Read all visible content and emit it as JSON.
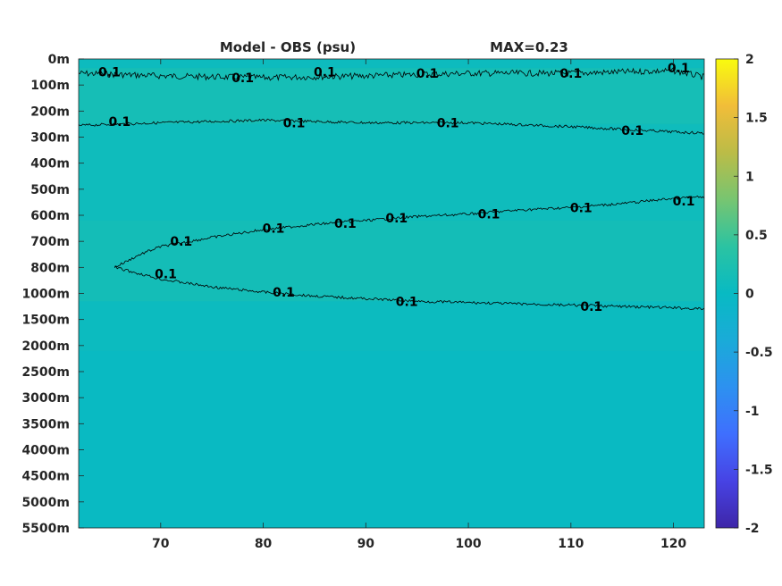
{
  "chart_data": {
    "type": "heatmap",
    "title": "Model - OBS (psu)",
    "subtitle": "MAX=0.23",
    "xlim": [
      62,
      123
    ],
    "x_ticks": [
      {
        "value": 70,
        "label": "70"
      },
      {
        "value": 80,
        "label": "80"
      },
      {
        "value": 90,
        "label": "90"
      },
      {
        "value": 100,
        "label": "100"
      },
      {
        "value": 110,
        "label": "110"
      },
      {
        "value": 120,
        "label": "120"
      }
    ],
    "y_ticks": [
      {
        "label": "0m",
        "index": 0
      },
      {
        "label": "100m",
        "index": 1
      },
      {
        "label": "200m",
        "index": 2
      },
      {
        "label": "300m",
        "index": 3
      },
      {
        "label": "400m",
        "index": 4
      },
      {
        "label": "500m",
        "index": 5
      },
      {
        "label": "600m",
        "index": 6
      },
      {
        "label": "700m",
        "index": 7
      },
      {
        "label": "800m",
        "index": 8
      },
      {
        "label": "1000m",
        "index": 9
      },
      {
        "label": "1500m",
        "index": 10
      },
      {
        "label": "2000m",
        "index": 11
      },
      {
        "label": "2500m",
        "index": 12
      },
      {
        "label": "3000m",
        "index": 13
      },
      {
        "label": "3500m",
        "index": 14
      },
      {
        "label": "4000m",
        "index": 15
      },
      {
        "label": "4500m",
        "index": 16
      },
      {
        "label": "5000m",
        "index": 17
      },
      {
        "label": "5500m",
        "index": 18
      }
    ],
    "colorbar": {
      "colormap": "parula",
      "clim": [
        -2,
        2
      ],
      "ticks": [
        {
          "value": 2,
          "label": "2"
        },
        {
          "value": 1.5,
          "label": "1.5"
        },
        {
          "value": 1,
          "label": "1"
        },
        {
          "value": 0.5,
          "label": "0.5"
        },
        {
          "value": 0,
          "label": "0"
        },
        {
          "value": -0.5,
          "label": "-0.5"
        },
        {
          "value": -1,
          "label": "-1"
        },
        {
          "value": -1.5,
          "label": "-1.5"
        },
        {
          "value": -2,
          "label": "-2"
        }
      ],
      "stops": [
        "#3e26a8",
        "#4743e4",
        "#3f6ffe",
        "#2d91f0",
        "#1aabd8",
        "#08bac3",
        "#2bc3a2",
        "#77c571",
        "#bbbc47",
        "#f1bd39",
        "#f9fb0e"
      ]
    },
    "field_bands": [
      {
        "depth_index_from": 0,
        "depth_index_to": 0.35,
        "value": 0.06
      },
      {
        "depth_index_from": 0.35,
        "depth_index_to": 2.5,
        "value": 0.16
      },
      {
        "depth_index_from": 2.5,
        "depth_index_to": 6.2,
        "value": 0.08
      },
      {
        "depth_index_from": 6.2,
        "depth_index_to": 9.3,
        "value": 0.14
      },
      {
        "depth_index_from": 9.3,
        "depth_index_to": 11.2,
        "value": 0.05
      },
      {
        "depth_index_from": 11.2,
        "depth_index_to": 18,
        "value": 0.01
      }
    ],
    "contour_level": 0.1,
    "contour_label": "0.1",
    "contours": [
      {
        "name": "contour-near-surface",
        "x": [
          62,
          70,
          80,
          90,
          100,
          110,
          115,
          120,
          123
        ],
        "depth_index": [
          0.55,
          0.65,
          0.72,
          0.65,
          0.55,
          0.55,
          0.5,
          0.45,
          0.7
        ],
        "labels": [
          {
            "x": 65,
            "di": 0.5
          },
          {
            "x": 78,
            "di": 0.72
          },
          {
            "x": 86,
            "di": 0.5
          },
          {
            "x": 96,
            "di": 0.55
          },
          {
            "x": 110,
            "di": 0.55
          },
          {
            "x": 120.5,
            "di": 0.35
          }
        ]
      },
      {
        "name": "contour-250m",
        "x": [
          62,
          70,
          80,
          90,
          100,
          110,
          120,
          123
        ],
        "depth_index": [
          2.55,
          2.45,
          2.35,
          2.45,
          2.45,
          2.6,
          2.8,
          2.85
        ],
        "labels": [
          {
            "x": 66,
            "di": 2.4
          },
          {
            "x": 83,
            "di": 2.45
          },
          {
            "x": 98,
            "di": 2.45
          },
          {
            "x": 116,
            "di": 2.75
          }
        ]
      },
      {
        "name": "contour-upper-wedge",
        "x": [
          65.5,
          68,
          70,
          75,
          80,
          85,
          90,
          95,
          100,
          105,
          110,
          115,
          120,
          123
        ],
        "depth_index": [
          8.0,
          7.5,
          7.2,
          6.85,
          6.55,
          6.35,
          6.2,
          6.05,
          5.95,
          5.8,
          5.7,
          5.55,
          5.35,
          5.3
        ],
        "labels": [
          {
            "x": 72,
            "di": 7.0
          },
          {
            "x": 81,
            "di": 6.5
          },
          {
            "x": 88,
            "di": 6.3
          },
          {
            "x": 93,
            "di": 6.1
          },
          {
            "x": 102,
            "di": 5.95
          },
          {
            "x": 111,
            "di": 5.7
          },
          {
            "x": 121,
            "di": 5.45
          }
        ]
      },
      {
        "name": "contour-lower-wedge",
        "x": [
          65.5,
          68,
          70,
          75,
          80,
          85,
          90,
          95,
          100,
          105,
          110,
          115,
          120,
          123
        ],
        "depth_index": [
          8.0,
          8.25,
          8.45,
          8.75,
          8.95,
          9.1,
          9.2,
          9.3,
          9.35,
          9.4,
          9.45,
          9.5,
          9.55,
          9.6
        ],
        "labels": [
          {
            "x": 70.5,
            "di": 8.25
          },
          {
            "x": 82,
            "di": 8.95
          },
          {
            "x": 94,
            "di": 9.3
          },
          {
            "x": 112,
            "di": 9.5
          }
        ]
      }
    ]
  }
}
